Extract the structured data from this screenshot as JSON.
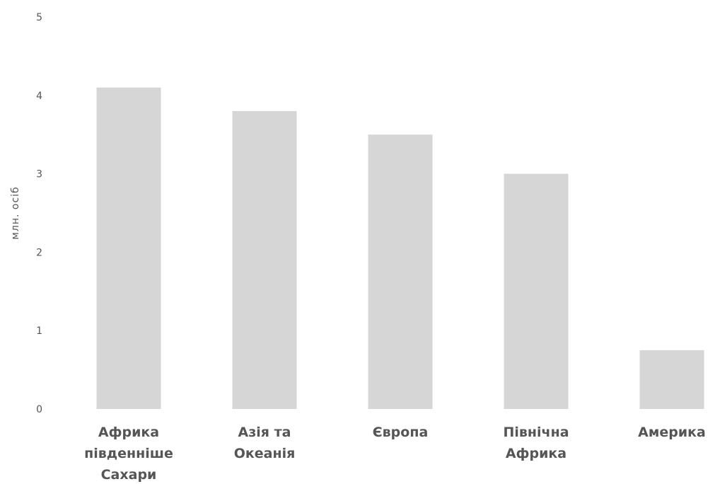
{
  "chart_data": {
    "type": "bar",
    "title": "",
    "xlabel": "",
    "ylabel": "млн. осіб",
    "categories": [
      [
        "Африка",
        "південніше",
        "Сахари"
      ],
      [
        "Азія та",
        "Океанія"
      ],
      [
        "Європа"
      ],
      [
        "Північна",
        "Африка"
      ],
      [
        "Америка"
      ]
    ],
    "values": [
      4.1,
      3.8,
      3.5,
      3.0,
      0.75
    ],
    "ylim": [
      0,
      5
    ],
    "yticks": [
      0,
      1,
      2,
      3,
      4,
      5
    ],
    "grid": false,
    "legend": "none",
    "bar_color": "#d6d6d6",
    "text_color": "#555555"
  }
}
